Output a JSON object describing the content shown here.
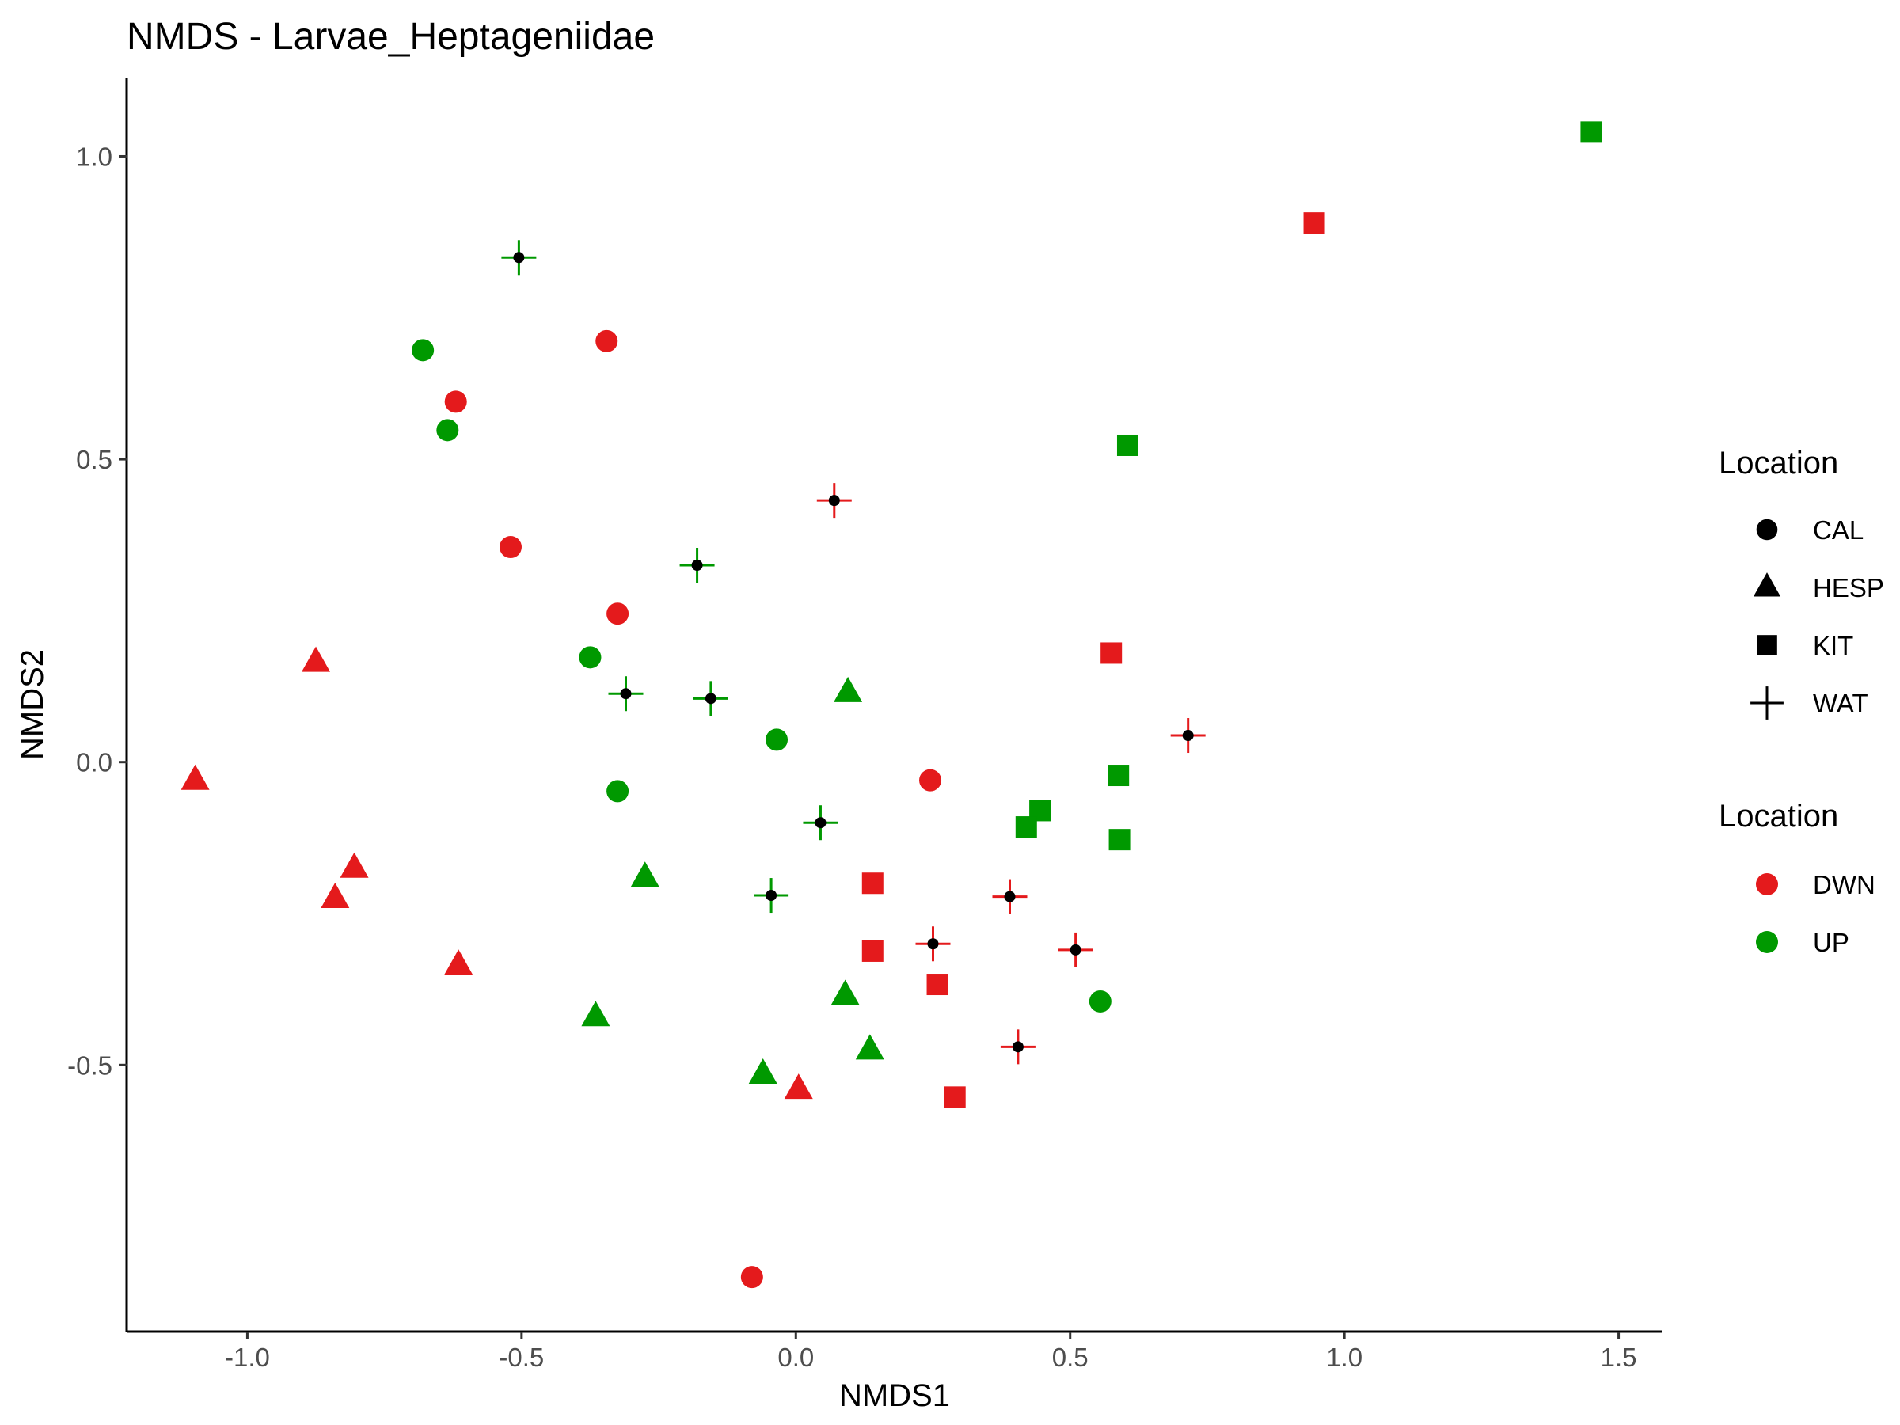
{
  "chart_data": {
    "type": "scatter",
    "title": "NMDS - Larvae_Heptageniidae",
    "xlabel": "NMDS1",
    "ylabel": "NMDS2",
    "xlim": [
      -1.22,
      1.58
    ],
    "ylim": [
      -0.94,
      1.13
    ],
    "x_ticks": [
      -1.0,
      -0.5,
      0.0,
      0.5,
      1.0,
      1.5
    ],
    "x_tick_labels": [
      "-1.0",
      "-0.5",
      "0.0",
      "0.5",
      "1.0",
      "1.5"
    ],
    "y_ticks": [
      -0.5,
      0.0,
      0.5,
      1.0
    ],
    "y_tick_labels": [
      "-0.5",
      "0.0",
      "0.5",
      "1.0"
    ],
    "grid": false,
    "legend_position": "right",
    "shape_legend": {
      "title": "Location",
      "items": [
        {
          "label": "CAL",
          "shape": "circle"
        },
        {
          "label": "HESP",
          "shape": "triangle"
        },
        {
          "label": "KIT",
          "shape": "square"
        },
        {
          "label": "WAT",
          "shape": "plus"
        }
      ]
    },
    "color_legend": {
      "title": "Location",
      "items": [
        {
          "label": "DWN",
          "color": "#e41a1c"
        },
        {
          "label": "UP",
          "color": "#009900"
        }
      ]
    },
    "points": [
      {
        "x": -0.62,
        "y": 0.595,
        "shape": "CAL",
        "group": "DWN"
      },
      {
        "x": -0.345,
        "y": 0.695,
        "shape": "CAL",
        "group": "DWN"
      },
      {
        "x": -0.52,
        "y": 0.355,
        "shape": "CAL",
        "group": "DWN"
      },
      {
        "x": -0.325,
        "y": 0.245,
        "shape": "CAL",
        "group": "DWN"
      },
      {
        "x": 0.245,
        "y": -0.03,
        "shape": "CAL",
        "group": "DWN"
      },
      {
        "x": -0.08,
        "y": -0.85,
        "shape": "CAL",
        "group": "DWN"
      },
      {
        "x": -0.68,
        "y": 0.68,
        "shape": "CAL",
        "group": "UP"
      },
      {
        "x": -0.635,
        "y": 0.548,
        "shape": "CAL",
        "group": "UP"
      },
      {
        "x": -0.375,
        "y": 0.173,
        "shape": "CAL",
        "group": "UP"
      },
      {
        "x": -0.035,
        "y": 0.037,
        "shape": "CAL",
        "group": "UP"
      },
      {
        "x": -0.325,
        "y": -0.048,
        "shape": "CAL",
        "group": "UP"
      },
      {
        "x": 0.555,
        "y": -0.395,
        "shape": "CAL",
        "group": "UP"
      },
      {
        "x": -0.875,
        "y": 0.165,
        "shape": "HESP",
        "group": "DWN"
      },
      {
        "x": -1.095,
        "y": -0.03,
        "shape": "HESP",
        "group": "DWN"
      },
      {
        "x": -0.805,
        "y": -0.175,
        "shape": "HESP",
        "group": "DWN"
      },
      {
        "x": -0.84,
        "y": -0.225,
        "shape": "HESP",
        "group": "DWN"
      },
      {
        "x": -0.615,
        "y": -0.335,
        "shape": "HESP",
        "group": "DWN"
      },
      {
        "x": 0.005,
        "y": -0.54,
        "shape": "HESP",
        "group": "DWN"
      },
      {
        "x": 0.095,
        "y": 0.115,
        "shape": "HESP",
        "group": "UP"
      },
      {
        "x": -0.275,
        "y": -0.19,
        "shape": "HESP",
        "group": "UP"
      },
      {
        "x": -0.365,
        "y": -0.42,
        "shape": "HESP",
        "group": "UP"
      },
      {
        "x": 0.09,
        "y": -0.385,
        "shape": "HESP",
        "group": "UP"
      },
      {
        "x": 0.135,
        "y": -0.475,
        "shape": "HESP",
        "group": "UP"
      },
      {
        "x": -0.06,
        "y": -0.515,
        "shape": "HESP",
        "group": "UP"
      },
      {
        "x": 0.945,
        "y": 0.89,
        "shape": "KIT",
        "group": "DWN"
      },
      {
        "x": 0.575,
        "y": 0.18,
        "shape": "KIT",
        "group": "DWN"
      },
      {
        "x": 0.14,
        "y": -0.2,
        "shape": "KIT",
        "group": "DWN"
      },
      {
        "x": 0.14,
        "y": -0.312,
        "shape": "KIT",
        "group": "DWN"
      },
      {
        "x": 0.258,
        "y": -0.367,
        "shape": "KIT",
        "group": "DWN"
      },
      {
        "x": 0.29,
        "y": -0.553,
        "shape": "KIT",
        "group": "DWN"
      },
      {
        "x": 1.45,
        "y": 1.04,
        "shape": "KIT",
        "group": "UP"
      },
      {
        "x": 0.605,
        "y": 0.523,
        "shape": "KIT",
        "group": "UP"
      },
      {
        "x": 0.588,
        "y": -0.022,
        "shape": "KIT",
        "group": "UP"
      },
      {
        "x": 0.445,
        "y": -0.08,
        "shape": "KIT",
        "group": "UP"
      },
      {
        "x": 0.42,
        "y": -0.107,
        "shape": "KIT",
        "group": "UP"
      },
      {
        "x": 0.59,
        "y": -0.128,
        "shape": "KIT",
        "group": "UP"
      },
      {
        "x": 0.07,
        "y": 0.432,
        "shape": "WAT",
        "group": "DWN"
      },
      {
        "x": 0.715,
        "y": 0.044,
        "shape": "WAT",
        "group": "DWN"
      },
      {
        "x": 0.39,
        "y": -0.222,
        "shape": "WAT",
        "group": "DWN"
      },
      {
        "x": 0.25,
        "y": -0.3,
        "shape": "WAT",
        "group": "DWN"
      },
      {
        "x": 0.51,
        "y": -0.31,
        "shape": "WAT",
        "group": "DWN"
      },
      {
        "x": 0.405,
        "y": -0.47,
        "shape": "WAT",
        "group": "DWN"
      },
      {
        "x": -0.505,
        "y": 0.833,
        "shape": "WAT",
        "group": "UP"
      },
      {
        "x": -0.18,
        "y": 0.325,
        "shape": "WAT",
        "group": "UP"
      },
      {
        "x": -0.31,
        "y": 0.113,
        "shape": "WAT",
        "group": "UP"
      },
      {
        "x": -0.155,
        "y": 0.105,
        "shape": "WAT",
        "group": "UP"
      },
      {
        "x": 0.045,
        "y": -0.1,
        "shape": "WAT",
        "group": "UP"
      },
      {
        "x": -0.045,
        "y": -0.22,
        "shape": "WAT",
        "group": "UP"
      }
    ]
  }
}
